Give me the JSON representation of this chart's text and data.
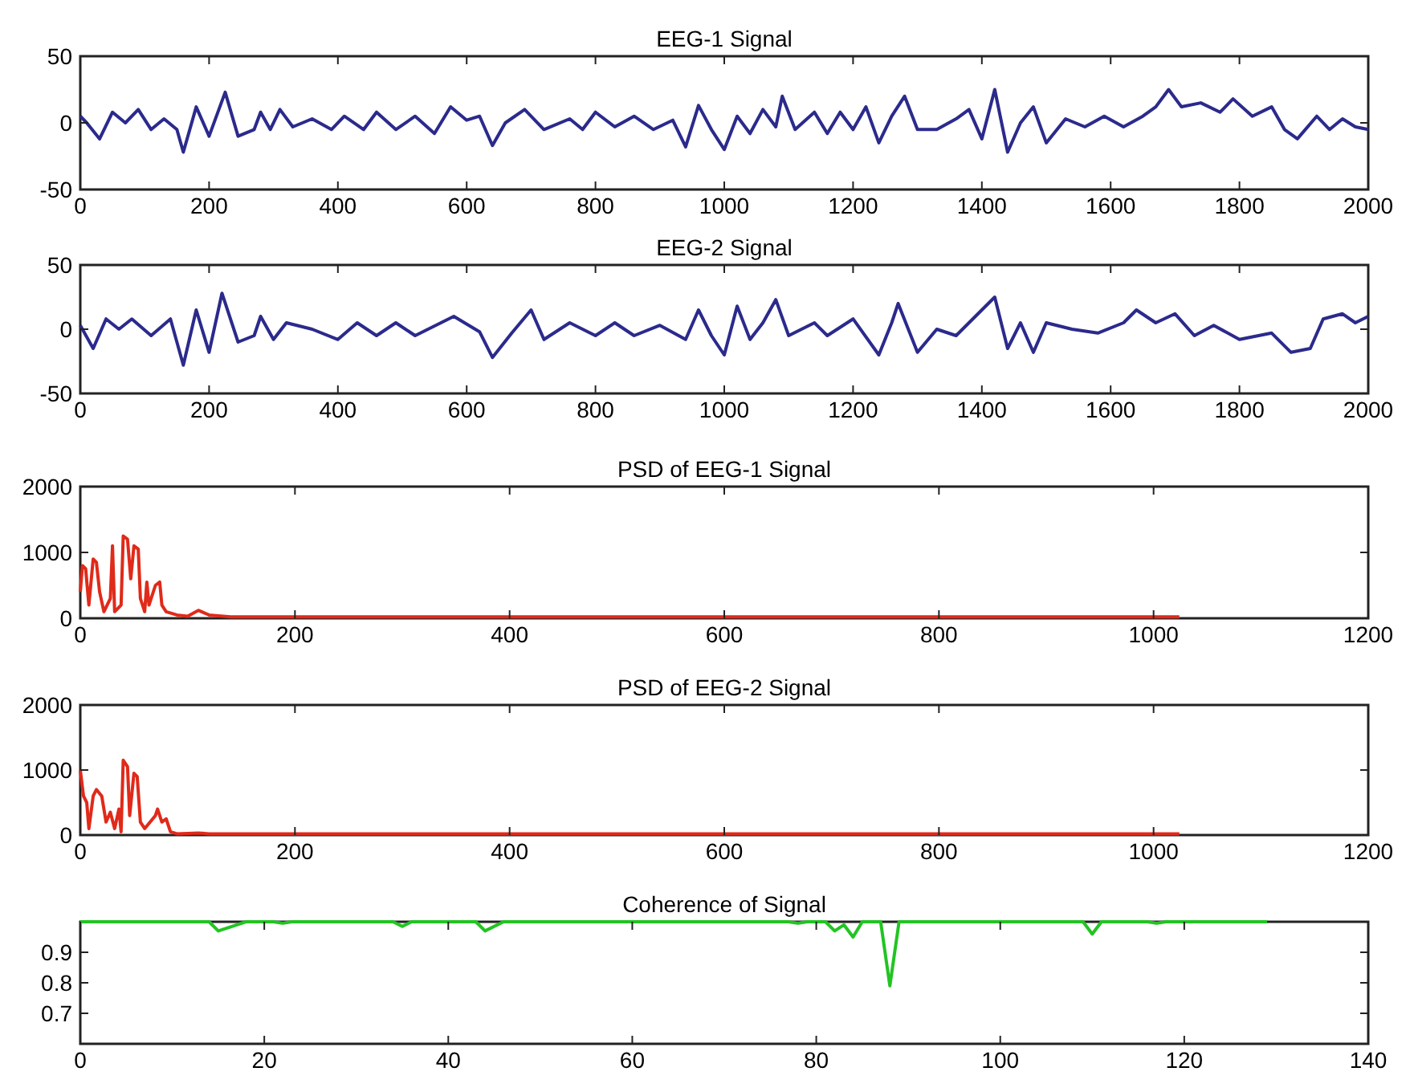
{
  "chart_data": [
    {
      "type": "line",
      "title": "EEG-1 Signal",
      "xlim": [
        0,
        2000
      ],
      "xticks": [
        0,
        200,
        400,
        600,
        800,
        1000,
        1200,
        1400,
        1600,
        1800,
        2000
      ],
      "ylim": [
        -50,
        50
      ],
      "yticks": [
        -50,
        0,
        50
      ],
      "grid": false,
      "series": [
        {
          "color": "#2b2a8c",
          "x": [
            0,
            10,
            30,
            50,
            70,
            90,
            110,
            130,
            150,
            160,
            180,
            200,
            225,
            245,
            270,
            280,
            295,
            310,
            330,
            360,
            390,
            410,
            440,
            460,
            490,
            520,
            550,
            575,
            600,
            620,
            640,
            660,
            690,
            720,
            760,
            780,
            800,
            830,
            860,
            890,
            920,
            940,
            960,
            980,
            1000,
            1020,
            1040,
            1060,
            1080,
            1090,
            1110,
            1140,
            1160,
            1180,
            1200,
            1220,
            1240,
            1260,
            1280,
            1300,
            1330,
            1360,
            1380,
            1400,
            1420,
            1440,
            1460,
            1480,
            1500,
            1530,
            1560,
            1590,
            1620,
            1650,
            1670,
            1690,
            1710,
            1740,
            1770,
            1790,
            1820,
            1850,
            1870,
            1890,
            1920,
            1940,
            1960,
            1980,
            2000
          ],
          "values": [
            5,
            0,
            -12,
            8,
            0,
            10,
            -5,
            3,
            -5,
            -22,
            12,
            -10,
            23,
            -10,
            -5,
            8,
            -5,
            10,
            -3,
            3,
            -5,
            5,
            -5,
            8,
            -5,
            5,
            -8,
            12,
            2,
            5,
            -17,
            0,
            10,
            -5,
            3,
            -5,
            8,
            -3,
            5,
            -5,
            2,
            -18,
            13,
            -5,
            -20,
            5,
            -8,
            10,
            -3,
            20,
            -5,
            8,
            -8,
            8,
            -5,
            12,
            -15,
            5,
            20,
            -5,
            -5,
            3,
            10,
            -12,
            25,
            -22,
            0,
            12,
            -15,
            3,
            -3,
            5,
            -3,
            5,
            12,
            25,
            12,
            15,
            8,
            18,
            5,
            12,
            -5,
            -12,
            5,
            -5,
            3,
            -3,
            -5
          ]
        }
      ]
    },
    {
      "type": "line",
      "title": "EEG-2 Signal",
      "xlim": [
        0,
        2000
      ],
      "xticks": [
        0,
        200,
        400,
        600,
        800,
        1000,
        1200,
        1400,
        1600,
        1800,
        2000
      ],
      "ylim": [
        -50,
        50
      ],
      "yticks": [
        -50,
        0,
        50
      ],
      "grid": false,
      "series": [
        {
          "color": "#2b2a8c",
          "x": [
            0,
            20,
            40,
            60,
            80,
            110,
            140,
            160,
            180,
            200,
            220,
            245,
            270,
            280,
            300,
            320,
            360,
            400,
            430,
            460,
            490,
            520,
            580,
            620,
            640,
            670,
            700,
            720,
            760,
            800,
            830,
            860,
            900,
            940,
            960,
            980,
            1000,
            1020,
            1040,
            1060,
            1080,
            1100,
            1140,
            1160,
            1200,
            1240,
            1260,
            1270,
            1300,
            1330,
            1360,
            1390,
            1420,
            1440,
            1460,
            1480,
            1500,
            1540,
            1580,
            1620,
            1640,
            1670,
            1700,
            1730,
            1760,
            1800,
            1850,
            1880,
            1910,
            1930,
            1960,
            1980,
            2000
          ],
          "values": [
            3,
            -15,
            8,
            0,
            8,
            -5,
            8,
            -28,
            15,
            -18,
            28,
            -10,
            -5,
            10,
            -8,
            5,
            0,
            -8,
            5,
            -5,
            5,
            -5,
            10,
            -2,
            -22,
            -3,
            15,
            -8,
            5,
            -5,
            5,
            -5,
            3,
            -8,
            15,
            -5,
            -20,
            18,
            -8,
            5,
            23,
            -5,
            5,
            -5,
            8,
            -20,
            5,
            20,
            -18,
            0,
            -5,
            10,
            25,
            -15,
            5,
            -18,
            5,
            0,
            -3,
            5,
            15,
            5,
            12,
            -5,
            3,
            -8,
            -3,
            -18,
            -15,
            8,
            12,
            5,
            10
          ]
        }
      ]
    },
    {
      "type": "line",
      "title": "PSD of EEG-1 Signal",
      "xlim": [
        0,
        1200
      ],
      "xticks": [
        0,
        200,
        400,
        600,
        800,
        1000,
        1200
      ],
      "ylim": [
        0,
        2000
      ],
      "yticks": [
        0,
        1000,
        2000
      ],
      "grid": false,
      "series": [
        {
          "color": "#e02a1a",
          "x": [
            0,
            2,
            5,
            8,
            12,
            15,
            18,
            22,
            28,
            30,
            32,
            38,
            40,
            44,
            47,
            50,
            54,
            56,
            60,
            62,
            64,
            70,
            74,
            76,
            80,
            90,
            100,
            110,
            120,
            140,
            200,
            1024
          ],
          "values": [
            400,
            800,
            750,
            200,
            900,
            850,
            400,
            100,
            300,
            1100,
            100,
            200,
            1250,
            1200,
            600,
            1100,
            1050,
            300,
            100,
            550,
            200,
            500,
            550,
            200,
            100,
            50,
            30,
            120,
            50,
            20,
            20,
            20
          ]
        }
      ]
    },
    {
      "type": "line",
      "title": "PSD of EEG-2 Signal",
      "xlim": [
        0,
        1200
      ],
      "xticks": [
        0,
        200,
        400,
        600,
        800,
        1000,
        1200
      ],
      "ylim": [
        0,
        2000
      ],
      "yticks": [
        0,
        1000,
        2000
      ],
      "grid": false,
      "series": [
        {
          "color": "#e02a1a",
          "x": [
            0,
            3,
            6,
            8,
            12,
            15,
            20,
            24,
            28,
            32,
            36,
            38,
            40,
            44,
            46,
            50,
            53,
            56,
            60,
            70,
            72,
            76,
            80,
            84,
            90,
            110,
            120,
            1024
          ],
          "values": [
            1000,
            600,
            500,
            100,
            600,
            700,
            600,
            200,
            350,
            100,
            400,
            50,
            1150,
            1050,
            300,
            950,
            900,
            200,
            100,
            300,
            400,
            200,
            250,
            50,
            20,
            30,
            20,
            20
          ]
        }
      ]
    },
    {
      "type": "line",
      "title": "Coherence of Signal",
      "xlim": [
        0,
        140
      ],
      "xticks": [
        0,
        20,
        40,
        60,
        80,
        100,
        120,
        140
      ],
      "ylim": [
        0.6,
        1
      ],
      "yticks": [
        0.7,
        0.8,
        0.9
      ],
      "grid": false,
      "series": [
        {
          "color": "#22c422",
          "x": [
            0,
            14,
            15,
            17,
            18,
            21,
            22,
            23,
            34,
            35,
            36,
            43,
            44,
            46,
            77,
            78,
            79,
            81,
            82,
            83,
            84,
            85,
            87,
            88,
            89,
            109,
            110,
            111,
            116,
            117,
            118,
            129
          ],
          "values": [
            1,
            1,
            0.97,
            0.99,
            1,
            1,
            0.995,
            1,
            1,
            0.985,
            1,
            1,
            0.97,
            1,
            1,
            0.995,
            1,
            1,
            0.97,
            0.99,
            0.95,
            1,
            1,
            0.79,
            1,
            1,
            0.96,
            1,
            1,
            0.995,
            1,
            1
          ]
        }
      ]
    }
  ]
}
